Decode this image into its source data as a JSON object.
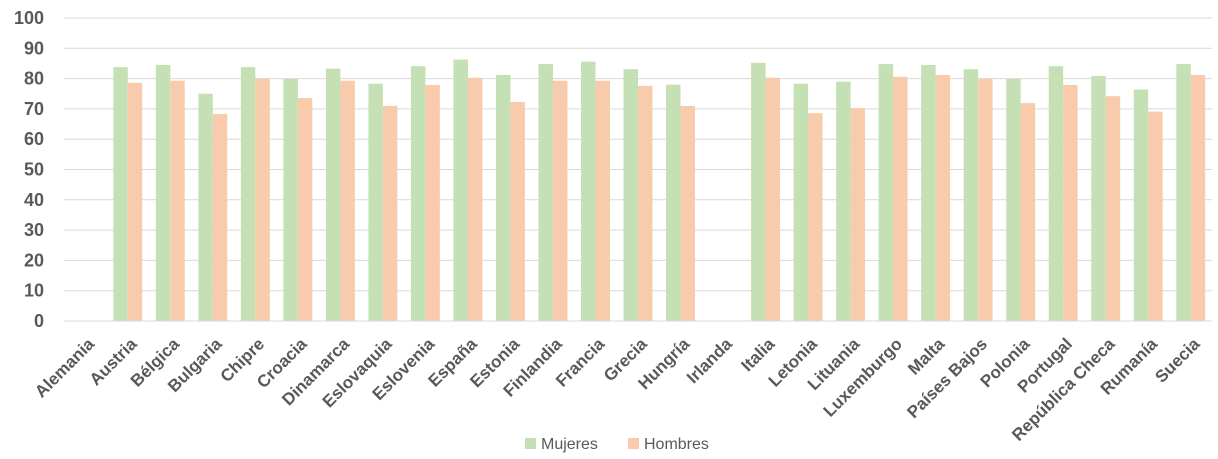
{
  "chart_data": {
    "type": "bar",
    "categories": [
      "Alemania",
      "Austria",
      "Bélgica",
      "Bulgaria",
      "Chipre",
      "Croacia",
      "Dinamarca",
      "Eslovaquia",
      "Eslovenia",
      "España",
      "Estonia",
      "Finlandia",
      "Francia",
      "Grecia",
      "Hungría",
      "Irlanda",
      "Italia",
      "Letonia",
      "Lituania",
      "Luxemburgo",
      "Malta",
      "Países Bajos",
      "Polonia",
      "Portugal",
      "República Checa",
      "Rumanía",
      "Suecia"
    ],
    "series": [
      {
        "name": "Mujeres",
        "color": "#C5E0B4",
        "values": [
          null,
          83.8,
          84.5,
          75.0,
          83.8,
          79.9,
          83.3,
          78.3,
          84.1,
          86.3,
          81.2,
          84.8,
          85.6,
          83.1,
          78.0,
          null,
          85.2,
          78.3,
          79.0,
          84.8,
          84.5,
          83.1,
          79.9,
          84.1,
          80.9,
          76.4,
          84.8
        ]
      },
      {
        "name": "Hombres",
        "color": "#F8CBAD",
        "values": [
          null,
          78.6,
          79.3,
          68.3,
          79.9,
          73.6,
          79.3,
          71.0,
          77.9,
          80.3,
          72.3,
          79.3,
          79.3,
          77.6,
          71.0,
          null,
          80.3,
          68.6,
          70.3,
          80.6,
          81.2,
          79.9,
          71.9,
          77.9,
          74.2,
          69.1,
          81.2
        ]
      }
    ],
    "yticks": [
      "0",
      "10",
      "20",
      "30",
      "40",
      "50",
      "60",
      "70",
      "80",
      "90",
      "100"
    ],
    "ylim": [
      0,
      100
    ],
    "grid": true,
    "legend_position": "bottom"
  }
}
